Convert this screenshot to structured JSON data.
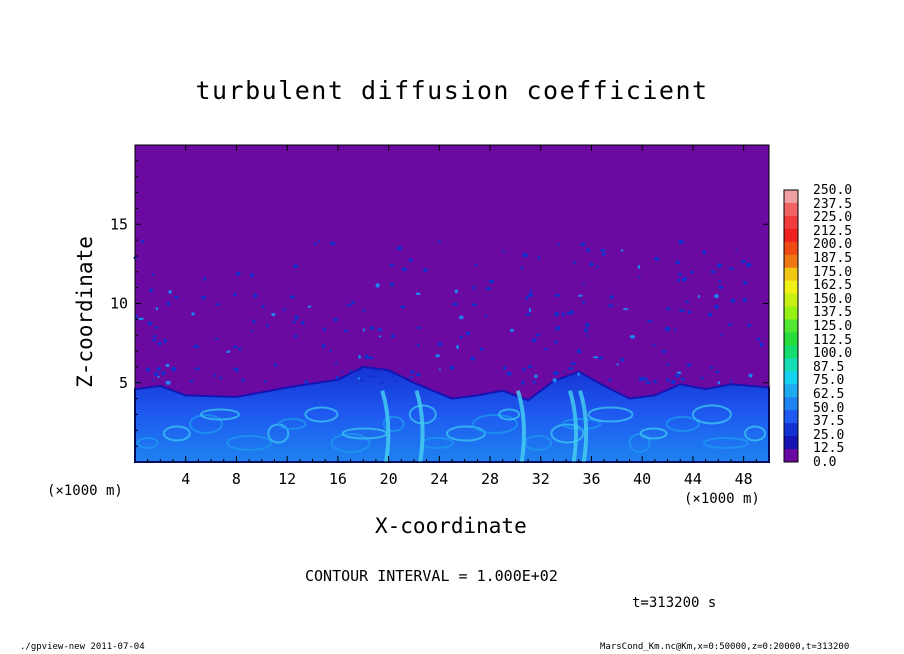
{
  "chart_data": {
    "type": "heatmap",
    "title": "turbulent diffusion coefficient",
    "xlabel": "X-coordinate",
    "ylabel": "Z-coordinate",
    "x_unit_left": "(×1000 m)",
    "x_unit_right": "(×1000 m)",
    "xlim": [
      0,
      50
    ],
    "ylim": [
      0,
      20
    ],
    "x_ticks": [
      "4",
      "8",
      "12",
      "16",
      "20",
      "24",
      "28",
      "32",
      "36",
      "40",
      "44",
      "48"
    ],
    "y_ticks": [
      "5",
      "10",
      "15"
    ],
    "background_value_color": "#6a0aa0",
    "colorbar": {
      "labels": [
        "250.0",
        "237.5",
        "225.0",
        "212.5",
        "200.0",
        "187.5",
        "175.0",
        "162.5",
        "150.0",
        "137.5",
        "125.0",
        "112.5",
        "100.0",
        "87.5",
        "75.0",
        "62.5",
        "50.0",
        "37.5",
        "25.0",
        "12.5",
        "0.0"
      ],
      "colors": [
        "#f0a0a0",
        "#f06464",
        "#f03c3c",
        "#f02020",
        "#f04a14",
        "#f07814",
        "#f0c814",
        "#f0f014",
        "#c8f014",
        "#96f014",
        "#50e632",
        "#28dc3c",
        "#14dc6e",
        "#14dcb4",
        "#14d2f0",
        "#1eaaf0",
        "#1e82f0",
        "#1e5af0",
        "#1432d2",
        "#1414b4",
        "#6a0aa0"
      ]
    },
    "boundary_layer_top_km": [
      {
        "x": 0,
        "z": 4.6
      },
      {
        "x": 2,
        "z": 4.8
      },
      {
        "x": 4,
        "z": 4.2
      },
      {
        "x": 8,
        "z": 4.1
      },
      {
        "x": 12,
        "z": 4.7
      },
      {
        "x": 16,
        "z": 5.2
      },
      {
        "x": 18,
        "z": 6.0
      },
      {
        "x": 20,
        "z": 5.8
      },
      {
        "x": 22,
        "z": 5.0
      },
      {
        "x": 25,
        "z": 4.0
      },
      {
        "x": 27,
        "z": 4.2
      },
      {
        "x": 29,
        "z": 4.5
      },
      {
        "x": 31,
        "z": 3.9
      },
      {
        "x": 33,
        "z": 5.1
      },
      {
        "x": 35,
        "z": 5.7
      },
      {
        "x": 37,
        "z": 4.8
      },
      {
        "x": 39,
        "z": 4.0
      },
      {
        "x": 41,
        "z": 4.2
      },
      {
        "x": 43,
        "z": 4.9
      },
      {
        "x": 45,
        "z": 4.6
      },
      {
        "x": 47,
        "z": 4.9
      },
      {
        "x": 50,
        "z": 4.7
      }
    ]
  },
  "contour_interval": "CONTOUR INTERVAL = 1.000E+02",
  "time_label": "t=313200 s",
  "footer_left": "./gpview-new  2011-07-04",
  "footer_right": "MarsCond_Km.nc@Km,x=0:50000,z=0:20000,t=313200"
}
